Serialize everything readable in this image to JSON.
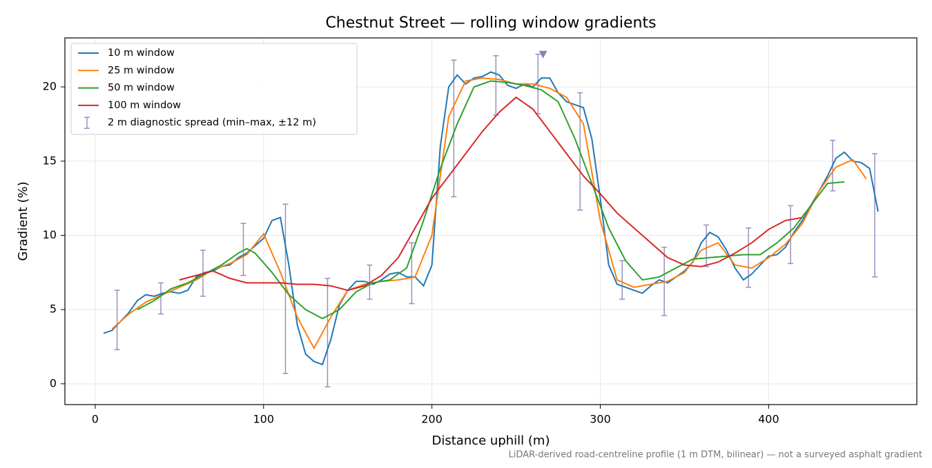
{
  "chart_data": {
    "type": "line",
    "title": "Chestnut Street — rolling window gradients",
    "xlabel": "Distance uphill (m)",
    "ylabel": "Gradient (%)",
    "footnote": "LiDAR-derived road-centreline profile (1 m DTM, bilinear) — not a surveyed asphalt gradient",
    "xlim": [
      -18,
      488
    ],
    "ylim": [
      -1.4,
      23.3
    ],
    "xticks": [
      0,
      100,
      200,
      300,
      400
    ],
    "yticks": [
      0,
      5,
      10,
      15,
      20
    ],
    "grid": true,
    "legend": "upper left",
    "series": [
      {
        "name": "10 m window",
        "color": "#1f77b4",
        "x": [
          5,
          10,
          15,
          20,
          25,
          30,
          35,
          40,
          45,
          50,
          55,
          60,
          65,
          70,
          75,
          80,
          85,
          90,
          95,
          100,
          105,
          110,
          115,
          120,
          125,
          130,
          135,
          140,
          145,
          150,
          155,
          160,
          165,
          170,
          175,
          180,
          185,
          190,
          195,
          200,
          205,
          210,
          215,
          220,
          225,
          230,
          235,
          240,
          245,
          250,
          255,
          260,
          265,
          270,
          275,
          280,
          285,
          290,
          295,
          300,
          305,
          310,
          315,
          320,
          325,
          330,
          335,
          340,
          345,
          350,
          355,
          360,
          365,
          370,
          375,
          380,
          385,
          390,
          395,
          400,
          405,
          410,
          415,
          420,
          425,
          430,
          435,
          440,
          445,
          450,
          455,
          460,
          465
        ],
        "values": [
          3.4,
          3.6,
          4.2,
          4.8,
          5.6,
          6.0,
          5.9,
          6.1,
          6.2,
          6.1,
          6.3,
          7.2,
          7.5,
          7.6,
          7.9,
          8.0,
          8.5,
          8.8,
          9.3,
          9.8,
          11.0,
          11.2,
          8.0,
          4.0,
          2.0,
          1.5,
          1.3,
          3.0,
          5.3,
          6.3,
          6.9,
          6.9,
          6.7,
          7.0,
          7.4,
          7.5,
          7.2,
          7.2,
          6.6,
          8.0,
          16.0,
          20.0,
          20.8,
          20.2,
          20.6,
          20.7,
          21.0,
          20.8,
          20.1,
          19.9,
          20.2,
          20.0,
          20.6,
          20.6,
          19.6,
          19.0,
          18.8,
          18.6,
          16.5,
          12.5,
          8.0,
          6.7,
          6.5,
          6.3,
          6.1,
          6.6,
          7.0,
          6.8,
          7.2,
          7.6,
          8.2,
          9.5,
          10.2,
          9.9,
          9.0,
          7.8,
          7.0,
          7.4,
          8.0,
          8.6,
          8.7,
          9.2,
          10.2,
          11.0,
          12.0,
          13.0,
          14.0,
          15.2,
          15.6,
          15.0,
          14.9,
          14.5,
          11.6
        ]
      },
      {
        "name": "25 m window",
        "color": "#ff7f0e",
        "x": [
          10,
          20,
          30,
          40,
          50,
          60,
          70,
          80,
          90,
          100,
          110,
          120,
          130,
          140,
          150,
          160,
          170,
          180,
          190,
          200,
          210,
          220,
          230,
          240,
          250,
          260,
          270,
          280,
          290,
          300,
          310,
          320,
          330,
          340,
          350,
          360,
          370,
          380,
          390,
          400,
          410,
          420,
          430,
          440,
          450,
          458
        ],
        "values": [
          3.7,
          4.7,
          5.5,
          6.0,
          6.5,
          7.0,
          7.7,
          8.1,
          8.7,
          10.1,
          7.5,
          4.5,
          2.4,
          4.5,
          6.3,
          6.7,
          6.9,
          7.0,
          7.2,
          10.0,
          18.0,
          20.4,
          20.6,
          20.5,
          20.2,
          20.2,
          19.9,
          19.3,
          17.5,
          11.0,
          7.0,
          6.5,
          6.7,
          6.9,
          7.5,
          9.0,
          9.5,
          8.0,
          7.8,
          8.5,
          9.4,
          10.8,
          13.0,
          14.6,
          15.1,
          13.8
        ]
      },
      {
        "name": "50 m window",
        "color": "#2ca02c",
        "x": [
          25,
          35,
          45,
          55,
          65,
          75,
          85,
          90,
          95,
          105,
          115,
          125,
          135,
          145,
          155,
          165,
          175,
          185,
          195,
          205,
          215,
          225,
          235,
          245,
          255,
          265,
          275,
          285,
          295,
          305,
          315,
          325,
          335,
          345,
          355,
          365,
          375,
          385,
          395,
          405,
          415,
          425,
          435,
          445
        ],
        "values": [
          5.0,
          5.6,
          6.4,
          6.8,
          7.4,
          8.0,
          8.8,
          9.1,
          8.8,
          7.5,
          6.0,
          5.0,
          4.4,
          5.0,
          6.2,
          6.8,
          7.0,
          7.8,
          11.0,
          14.5,
          17.5,
          20.0,
          20.4,
          20.3,
          20.1,
          19.8,
          19.0,
          16.5,
          13.5,
          10.5,
          8.3,
          7.0,
          7.2,
          7.8,
          8.4,
          8.5,
          8.6,
          8.7,
          8.7,
          9.5,
          10.5,
          12.0,
          13.5,
          13.6
        ]
      },
      {
        "name": "100 m window",
        "color": "#d62728",
        "x": [
          50,
          60,
          70,
          80,
          90,
          100,
          110,
          120,
          130,
          140,
          150,
          160,
          170,
          180,
          190,
          200,
          210,
          220,
          230,
          240,
          250,
          260,
          270,
          280,
          290,
          300,
          310,
          320,
          330,
          340,
          350,
          360,
          370,
          380,
          390,
          400,
          410,
          420
        ],
        "values": [
          7.0,
          7.3,
          7.6,
          7.1,
          6.8,
          6.8,
          6.8,
          6.7,
          6.7,
          6.6,
          6.3,
          6.6,
          7.3,
          8.5,
          10.5,
          12.5,
          14.0,
          15.5,
          17.0,
          18.3,
          19.3,
          18.5,
          17.0,
          15.5,
          14.0,
          12.8,
          11.5,
          10.5,
          9.5,
          8.5,
          8.0,
          7.9,
          8.2,
          8.8,
          9.5,
          10.4,
          11.0,
          11.2
        ]
      }
    ],
    "errorbars": {
      "name": "2 m diagnostic spread (min–max, ±12 m)",
      "color": "#9a8fbd",
      "x": [
        13,
        39,
        64,
        88,
        113,
        138,
        163,
        188,
        213,
        238,
        263,
        288,
        313,
        338,
        363,
        388,
        413,
        438,
        463
      ],
      "low": [
        2.3,
        4.7,
        5.9,
        7.3,
        0.7,
        -0.2,
        5.7,
        5.4,
        12.6,
        18.1,
        18.2,
        11.7,
        5.7,
        4.6,
        7.9,
        6.5,
        8.1,
        13.0,
        7.2
      ],
      "high": [
        6.3,
        6.8,
        9.0,
        10.8,
        12.1,
        7.1,
        8.0,
        9.5,
        21.8,
        22.1,
        22.2,
        19.6,
        8.3,
        9.2,
        10.7,
        10.5,
        12.0,
        16.4,
        15.5
      ]
    },
    "marker": {
      "x": 266,
      "y": 22.2,
      "color": "#8c7fb3"
    }
  }
}
